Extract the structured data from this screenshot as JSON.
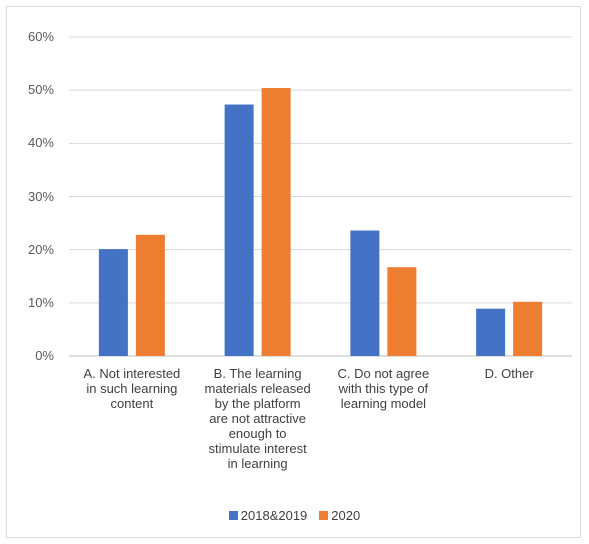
{
  "chart_data": {
    "type": "bar",
    "categories": [
      "A. Not interested in such learning content",
      "B. The learning materials released by the platform are not attractive enough to stimulate interest in learning",
      "C. Do not agree with this type of learning model",
      "D. Other"
    ],
    "category_lines": [
      [
        "A. Not interested",
        "in such learning",
        "content"
      ],
      [
        "B. The learning",
        "materials released",
        "by the platform",
        "are not attractive",
        "enough to",
        "stimulate interest",
        "in learning"
      ],
      [
        "C. Do not agree",
        "with this type of",
        "learning model"
      ],
      [
        "D. Other"
      ]
    ],
    "series": [
      {
        "name": "2018&2019",
        "values": [
          20.1,
          47.3,
          23.6,
          8.9
        ],
        "color": "#4472c4"
      },
      {
        "name": "2020",
        "values": [
          22.8,
          50.4,
          16.7,
          10.2
        ],
        "color": "#ed7d31"
      }
    ],
    "yticks": [
      "0%",
      "10%",
      "20%",
      "30%",
      "40%",
      "50%",
      "60%"
    ],
    "ylim": [
      0,
      60
    ],
    "grid": true,
    "legend_position": "bottom",
    "title": "",
    "xlabel": "",
    "ylabel": ""
  }
}
